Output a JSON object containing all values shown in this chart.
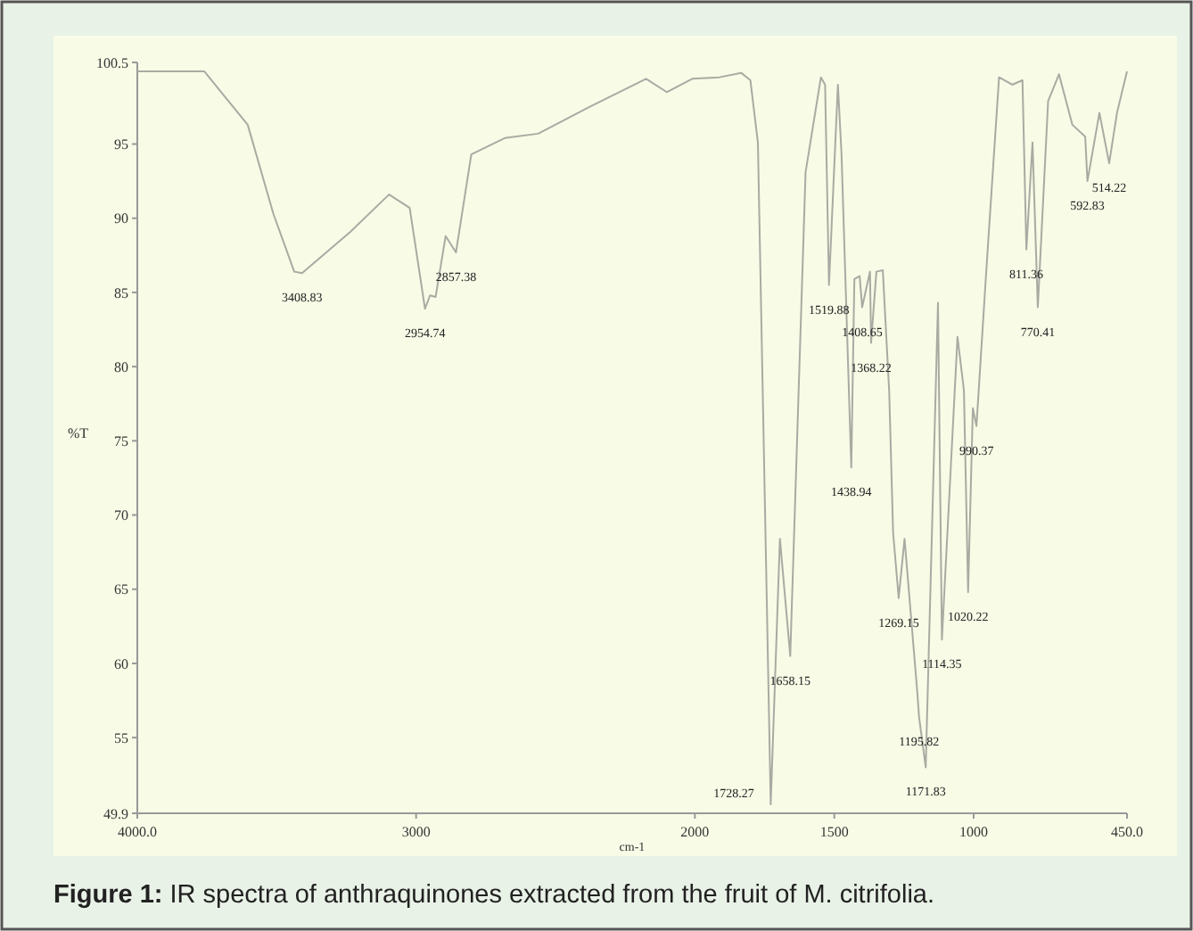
{
  "chart_data": {
    "type": "line",
    "xlabel": "cm-1",
    "ylabel": "%T",
    "xlim": [
      4000,
      450
    ],
    "ylim": [
      49.9,
      100.5
    ],
    "xticks": [
      {
        "value": 4000,
        "label": "4000.0"
      },
      3000,
      2000,
      1500,
      1000,
      {
        "value": 450,
        "label": "450.0"
      }
    ],
    "yticks": [
      49.9,
      55,
      60,
      65,
      70,
      75,
      80,
      85,
      90,
      95,
      100.5
    ],
    "grid": false,
    "marker": "none",
    "line_style": "solid",
    "series": [
      {
        "color": "#a9aba2",
        "x": [
          4000,
          3760,
          3604,
          3512,
          3437,
          3409,
          3235,
          3097,
          3023,
          2968,
          2950,
          2930,
          2894,
          2857,
          2802,
          2682,
          2562,
          2378,
          2175,
          2101,
          2009,
          1912,
          1834,
          1801,
          1774,
          1728,
          1695,
          1658,
          1603,
          1548,
          1533,
          1519,
          1487,
          1474,
          1439,
          1428,
          1409,
          1400,
          1372,
          1368,
          1349,
          1326,
          1303,
          1289,
          1269,
          1248,
          1202,
          1196,
          1172,
          1128,
          1114,
          1058,
          1035,
          1020,
          1003,
          990,
          955,
          909,
          862,
          825,
          811,
          789,
          770,
          733,
          694,
          646,
          600,
          592,
          549,
          514,
          486,
          450
        ],
        "values": [
          99.9,
          99.9,
          96.3,
          90.3,
          86.4,
          86.3,
          89.1,
          91.6,
          90.7,
          83.9,
          84.8,
          84.7,
          88.8,
          87.7,
          94.3,
          95.4,
          95.7,
          97.5,
          99.4,
          98.5,
          99.4,
          99.5,
          99.8,
          99.3,
          95.1,
          50.5,
          68.4,
          60.5,
          93.1,
          99.5,
          99.0,
          85.5,
          99.0,
          94.3,
          73.2,
          85.9,
          86.1,
          84.0,
          86.4,
          81.6,
          86.4,
          86.5,
          78.3,
          68.8,
          64.4,
          68.4,
          58.0,
          56.4,
          53.0,
          84.3,
          61.6,
          82.0,
          78.4,
          64.8,
          77.2,
          76.0,
          86.4,
          99.5,
          99.0,
          99.3,
          87.9,
          95.1,
          84.0,
          97.9,
          99.7,
          96.3,
          95.5,
          92.5,
          97.1,
          93.7,
          97.1,
          99.9
        ]
      }
    ],
    "annotations": [
      "Figure 1: IR spectra of anthraquinones extracted from the fruit of M. citrifolia.",
      {
        "text": "3408.83",
        "x": 3409,
        "y": 86.3
      },
      {
        "text": "2954.74",
        "x": 2968,
        "y": 83.9
      },
      {
        "text": "2857.38",
        "x": 2857,
        "y": 87.7
      },
      {
        "text": "1728.27",
        "x": 1728,
        "y": 50.5
      },
      {
        "text": "1658.15",
        "x": 1658,
        "y": 60.5
      },
      {
        "text": "1519.88",
        "x": 1519,
        "y": 85.5
      },
      {
        "text": "1408.65",
        "x": 1400,
        "y": 84.0
      },
      {
        "text": "1438.94",
        "x": 1439,
        "y": 73.2
      },
      {
        "text": "1368.22",
        "x": 1368,
        "y": 81.6
      },
      {
        "text": "1269.15",
        "x": 1269,
        "y": 64.4
      },
      {
        "text": "1195.82",
        "x": 1196,
        "y": 56.4
      },
      {
        "text": "1171.83",
        "x": 1172,
        "y": 53.0
      },
      {
        "text": "1114.35",
        "x": 1114,
        "y": 61.6
      },
      {
        "text": "1020.22",
        "x": 1020,
        "y": 64.8
      },
      {
        "text": "990.37",
        "x": 990,
        "y": 76.0
      },
      {
        "text": "811.36",
        "x": 811,
        "y": 87.9
      },
      {
        "text": "770.41",
        "x": 770,
        "y": 84.0
      },
      {
        "text": "592.83",
        "x": 592,
        "y": 92.5
      },
      {
        "text": "514.22",
        "x": 514,
        "y": 93.7
      }
    ]
  }
}
